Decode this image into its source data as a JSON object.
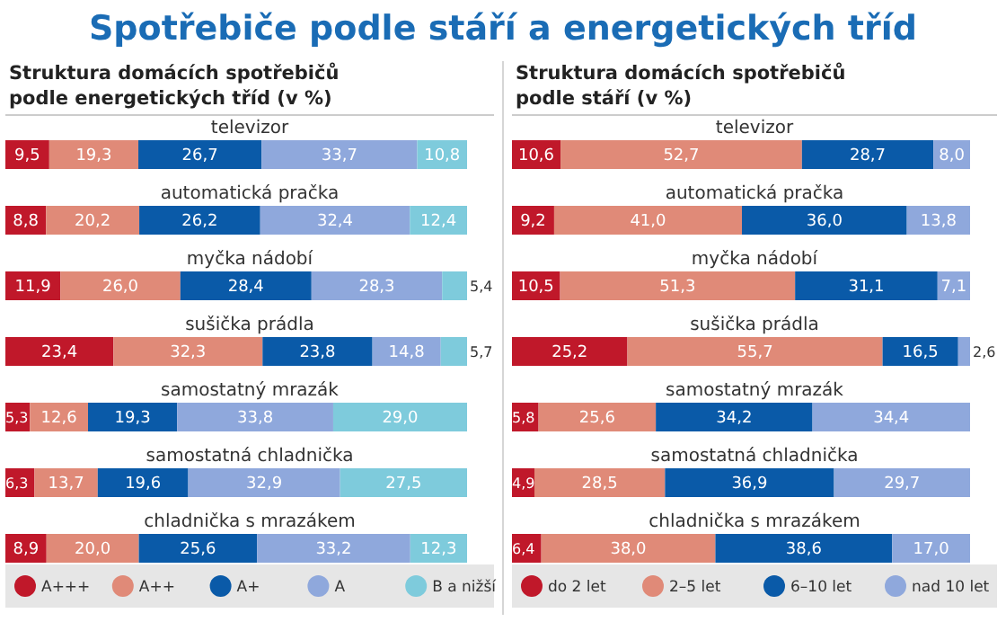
{
  "chart_data": [
    {
      "type": "bar",
      "orientation": "horizontal",
      "stacked": true,
      "legend": "bottom",
      "title": "Spotřebiče podle stáří a energetických tříd",
      "subtitle": "Struktura domácích spotřebičů podle energetických tříd (v %)",
      "categories": [
        "televizor",
        "automatická pračka",
        "myčka nádobí",
        "sušička prádla",
        "samostatný mrazák",
        "samostatná chladnička",
        "chladnička s mrazákem"
      ],
      "series": [
        {
          "name": "A+++",
          "color": "#c0182a",
          "values": [
            9.5,
            8.8,
            11.9,
            23.4,
            5.3,
            6.3,
            8.9
          ],
          "value_labels": [
            "9,5",
            "8,8",
            "11,9",
            "23,4",
            "5,3",
            "6,3",
            "8,9"
          ]
        },
        {
          "name": "A++",
          "color": "#e08a78",
          "values": [
            19.3,
            20.2,
            26.0,
            32.3,
            12.6,
            13.7,
            20.0
          ],
          "value_labels": [
            "19,3",
            "20,2",
            "26,0",
            "32,3",
            "12,6",
            "13,7",
            "20,0"
          ]
        },
        {
          "name": "A+",
          "color": "#0a5aa8",
          "values": [
            26.7,
            26.2,
            28.4,
            23.8,
            19.3,
            19.6,
            25.6
          ],
          "value_labels": [
            "26,7",
            "26,2",
            "28,4",
            "23,8",
            "19,3",
            "19,6",
            "25,6"
          ]
        },
        {
          "name": "A",
          "color": "#8fa8dc",
          "values": [
            33.7,
            32.4,
            28.3,
            14.8,
            33.8,
            32.9,
            33.2
          ],
          "value_labels": [
            "33,7",
            "32,4",
            "28,3",
            "14,8",
            "33,8",
            "32,9",
            "33,2"
          ]
        },
        {
          "name": "B a nižší",
          "color": "#7ecbdc",
          "values": [
            10.8,
            12.4,
            5.4,
            5.7,
            29.0,
            27.5,
            12.3
          ],
          "value_labels": [
            "10,8",
            "12,4",
            "5,4",
            "5,7",
            "29,0",
            "27,5",
            "12,3"
          ]
        }
      ]
    },
    {
      "type": "bar",
      "orientation": "horizontal",
      "stacked": true,
      "legend": "bottom",
      "subtitle": "Struktura domácích spotřebičů podle stáří (v %)",
      "categories": [
        "televizor",
        "automatická pračka",
        "myčka nádobí",
        "sušička prádla",
        "samostatný mrazák",
        "samostatná chladnička",
        "chladnička s mrazákem"
      ],
      "series": [
        {
          "name": "do 2 let",
          "color": "#c0182a",
          "values": [
            10.6,
            9.2,
            10.5,
            25.2,
            5.8,
            4.9,
            6.4
          ],
          "value_labels": [
            "10,6",
            "9,2",
            "10,5",
            "25,2",
            "5,8",
            "4,9",
            "6,4"
          ]
        },
        {
          "name": "2–5 let",
          "color": "#e08a78",
          "values": [
            52.7,
            41.0,
            51.3,
            55.7,
            25.6,
            28.5,
            38.0
          ],
          "value_labels": [
            "52,7",
            "41,0",
            "51,3",
            "55,7",
            "25,6",
            "28,5",
            "38,0"
          ]
        },
        {
          "name": "6–10 let",
          "color": "#0a5aa8",
          "values": [
            28.7,
            36.0,
            31.1,
            16.5,
            34.2,
            36.9,
            38.6
          ],
          "value_labels": [
            "28,7",
            "36,0",
            "31,1",
            "16,5",
            "34,2",
            "36,9",
            "38,6"
          ]
        },
        {
          "name": "nad 10 let",
          "color": "#8fa8dc",
          "values": [
            8.0,
            13.8,
            7.1,
            2.6,
            34.4,
            29.7,
            17.0
          ],
          "value_labels": [
            "8,0",
            "13,8",
            "7,1",
            "2,6",
            "34,4",
            "29,7",
            "17,0"
          ]
        }
      ]
    }
  ]
}
